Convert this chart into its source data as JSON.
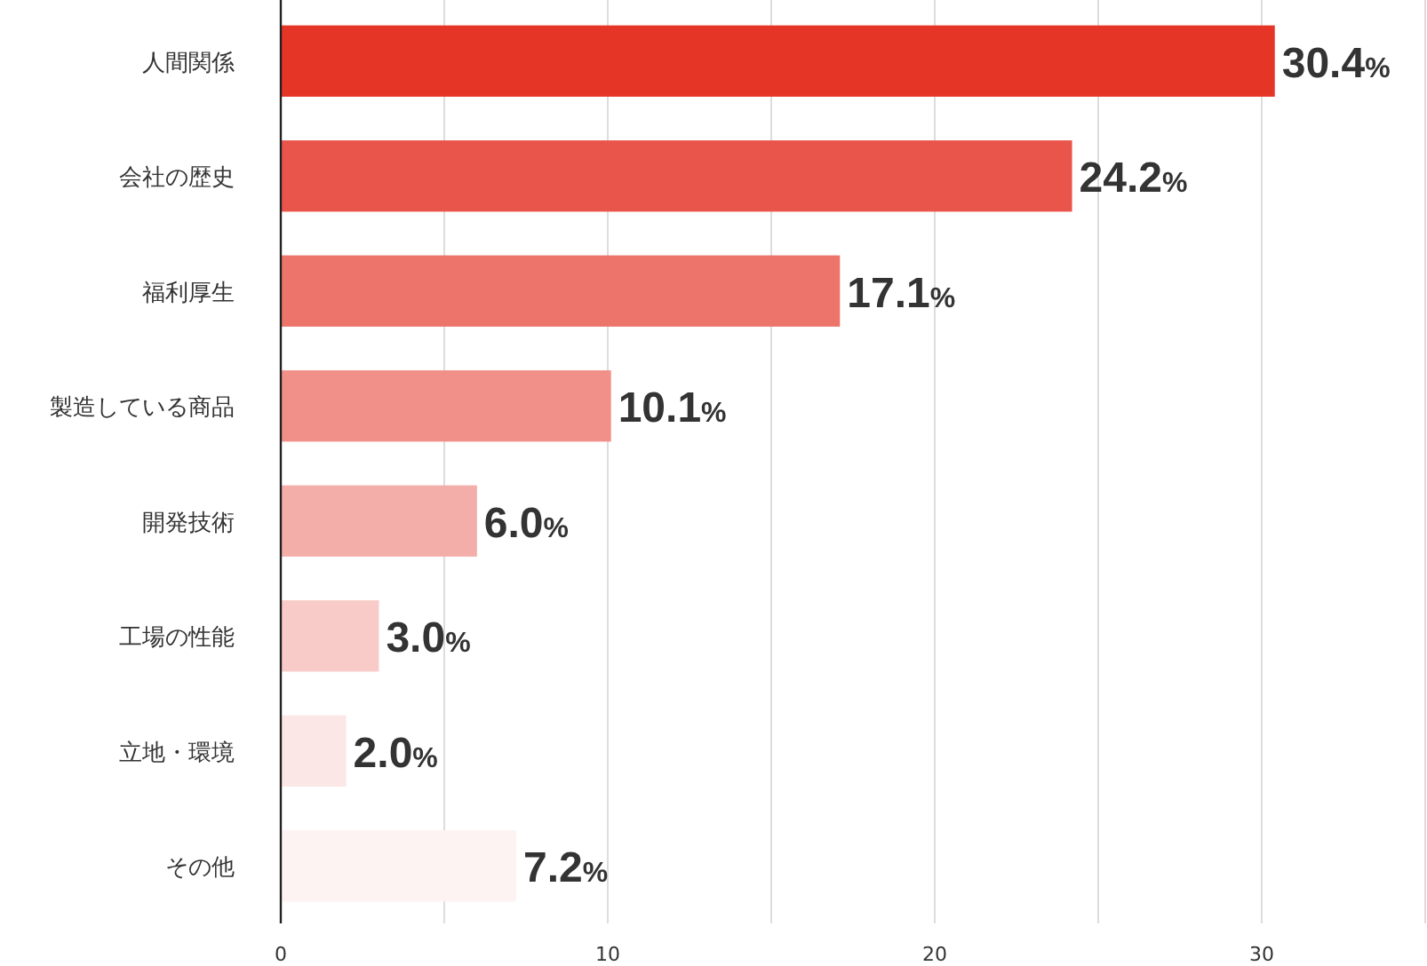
{
  "chart_data": {
    "type": "bar",
    "orientation": "horizontal",
    "categories": [
      "人間関係",
      "会社の歴史",
      "福利厚生",
      "製造している商品",
      "開発技術",
      "工場の性能",
      "立地・環境",
      "その他"
    ],
    "values": [
      30.4,
      24.2,
      17.1,
      10.1,
      6.0,
      3.0,
      2.0,
      7.2
    ],
    "value_labels": [
      "30.4%",
      "24.2%",
      "17.1%",
      "10.1%",
      "6.0%",
      "3.0%",
      "2.0%",
      "7.2%"
    ],
    "colors": [
      "#e53527",
      "#e9544b",
      "#ec746b",
      "#f19089",
      "#f4aea9",
      "#f8cbc8",
      "#fbe7e5",
      "#fdf3f2"
    ],
    "xlim": [
      0,
      35
    ],
    "xticks": [
      0,
      {
        "value": 5,
        "label": null
      },
      10,
      {
        "value": 15,
        "label": null
      },
      20,
      {
        "value": 25,
        "label": null
      },
      30,
      {
        "value": 35,
        "label": null
      }
    ],
    "grid": "x"
  }
}
